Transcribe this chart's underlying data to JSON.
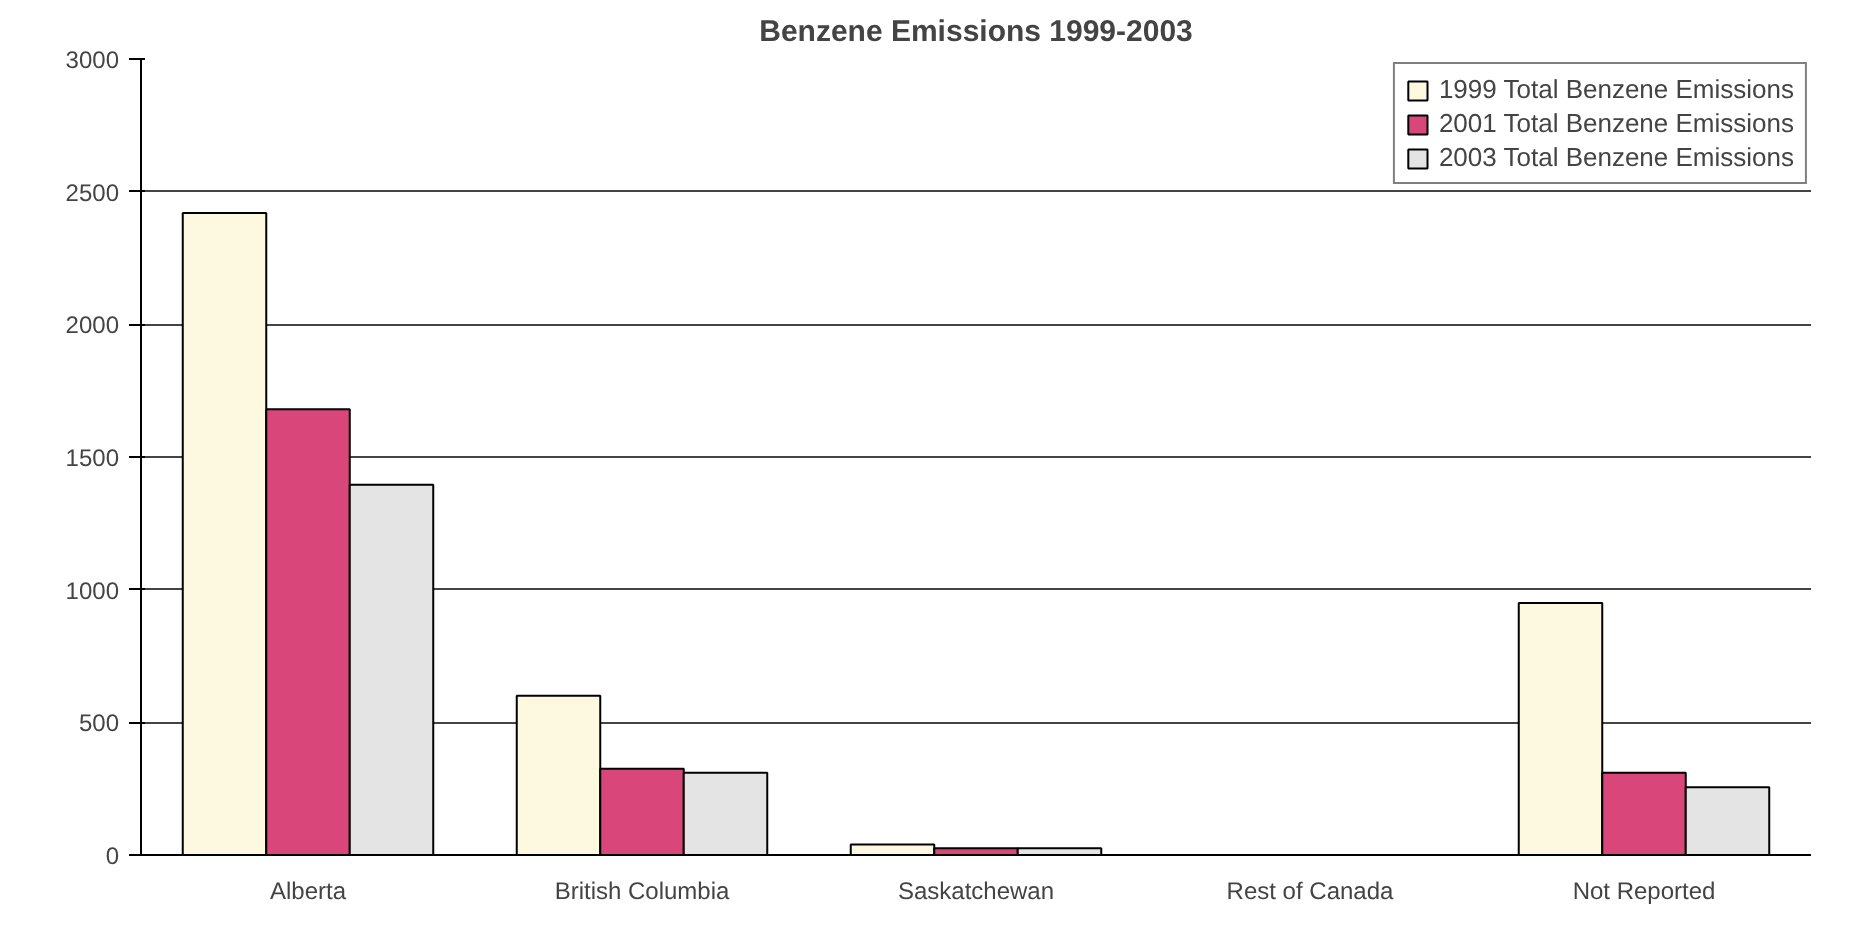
{
  "chart_data": {
    "type": "bar",
    "title": "Benzene Emissions 1999-2003",
    "categories": [
      "Alberta",
      "British Columbia",
      "Saskatchewan",
      "Rest of Canada",
      "Not Reported"
    ],
    "series": [
      {
        "name": "1999 Total Benzene Emissions",
        "color": "#fdf9e0",
        "values": [
          2420,
          600,
          40,
          null,
          950
        ]
      },
      {
        "name": "2001 Total Benzene Emissions",
        "color": "#d9467a",
        "values": [
          1680,
          325,
          25,
          null,
          310
        ]
      },
      {
        "name": "2003 Total Benzene Emissions",
        "color": "#e4e4e4",
        "values": [
          1395,
          310,
          25,
          null,
          255
        ]
      }
    ],
    "ylim": [
      0,
      3000
    ],
    "yticks": [
      0,
      500,
      1000,
      1500,
      2000,
      2500,
      3000
    ],
    "grid": "y",
    "legend": "top right"
  }
}
